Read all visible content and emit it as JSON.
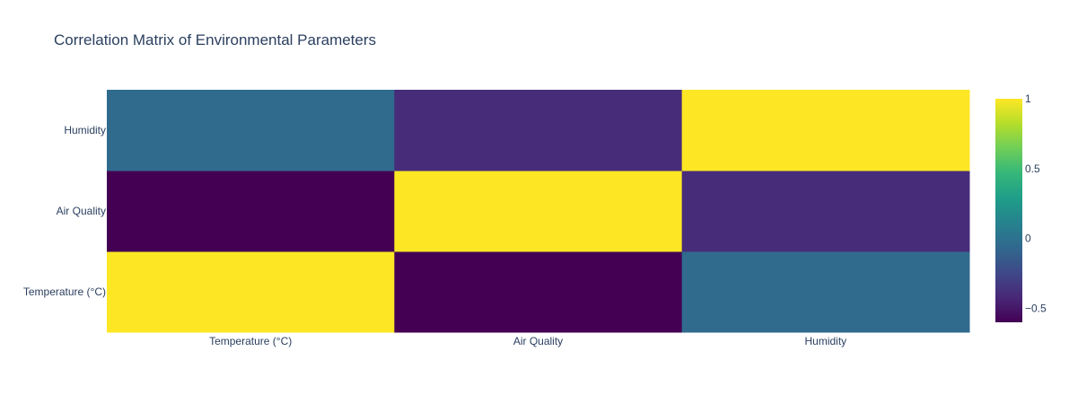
{
  "chart_data": {
    "type": "heatmap",
    "title": "Correlation Matrix of Environmental Parameters",
    "x": [
      "Temperature (°C)",
      "Air Quality",
      "Humidity"
    ],
    "y": [
      "Temperature (°C)",
      "Air Quality",
      "Humidity"
    ],
    "z": [
      [
        1.0,
        -0.6,
        -0.05
      ],
      [
        -0.6,
        1.0,
        -0.4
      ],
      [
        -0.05,
        -0.4,
        1.0
      ]
    ],
    "zlim": [
      -0.6,
      1.0
    ],
    "colorscale": "Viridis",
    "colorbar": {
      "ticks": [
        -0.5,
        0,
        0.5,
        1
      ],
      "tick_labels": [
        "−0.5",
        "0",
        "0.5",
        "1"
      ]
    }
  }
}
